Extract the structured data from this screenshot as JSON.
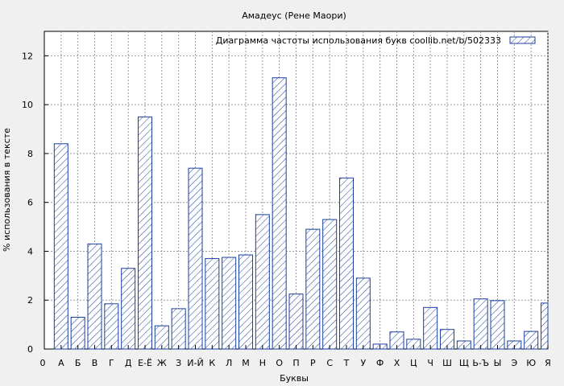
{
  "chart_data": {
    "type": "bar",
    "title": "Амадеус (Рене Маори)",
    "xlabel": "Буквы",
    "ylabel": "% использования в тексте",
    "legend": {
      "label": "Диаграмма частоты использования букв  coollib.net/b/502333",
      "placement": "top-right"
    },
    "xaxis_start_label": "0",
    "categories": [
      "А",
      "Б",
      "В",
      "Г",
      "Д",
      "Е-Ё",
      "Ж",
      "З",
      "И-Й",
      "К",
      "Л",
      "М",
      "Н",
      "О",
      "П",
      "Р",
      "С",
      "Т",
      "У",
      "Ф",
      "Х",
      "Ц",
      "Ч",
      "Ш",
      "Щ",
      "Ь-Ъ",
      "Ы",
      "Э",
      "Ю",
      "Я"
    ],
    "values": [
      8.4,
      1.3,
      4.3,
      1.85,
      3.3,
      9.5,
      0.95,
      1.65,
      7.4,
      3.7,
      3.75,
      3.85,
      5.5,
      11.1,
      2.25,
      4.9,
      5.3,
      7.0,
      2.9,
      0.2,
      0.7,
      0.4,
      1.7,
      0.8,
      0.33,
      2.05,
      1.98,
      0.33,
      0.72,
      1.88
    ],
    "yticks": [
      0,
      2,
      4,
      6,
      8,
      10,
      12
    ],
    "ylim": [
      0,
      13
    ],
    "grid": true,
    "colors": {
      "bar_stroke": "#1a3f9e",
      "hatch": "#1a3f9e",
      "grid": "#999999",
      "plot_bg": "#ffffff",
      "page_bg": "#f0f0f0"
    }
  }
}
